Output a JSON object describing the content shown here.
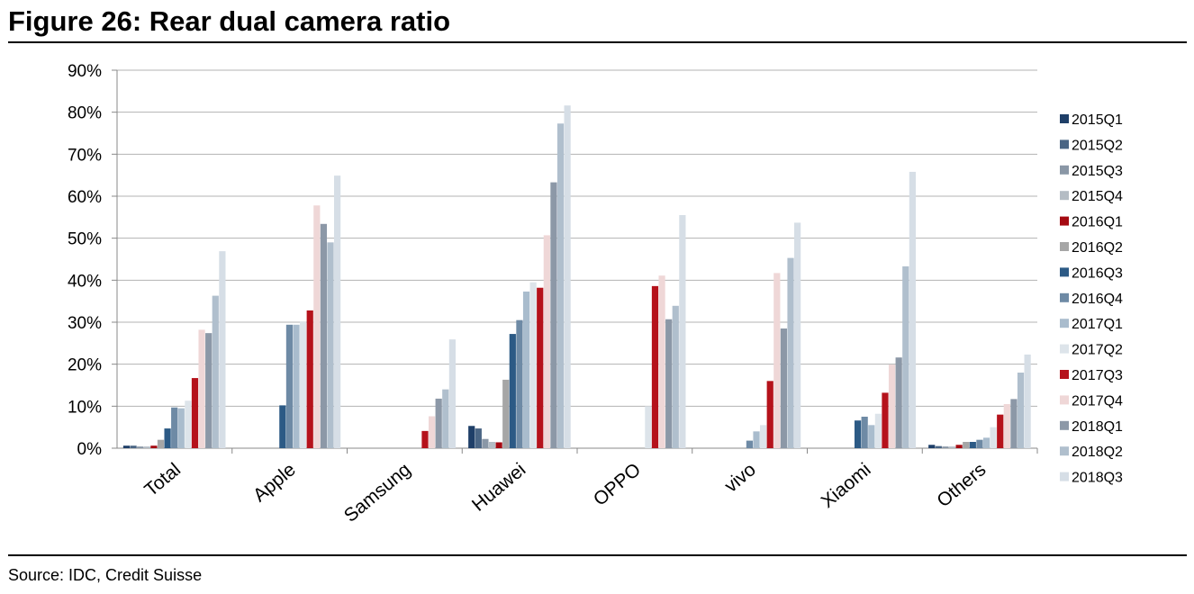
{
  "figure": {
    "title": "Figure 26: Rear dual camera ratio",
    "source": "Source: IDC, Credit Suisse"
  },
  "chart_data": {
    "type": "bar",
    "title": "",
    "xlabel": "",
    "ylabel": "",
    "ylim": [
      0,
      90
    ],
    "y_format": "percent",
    "y_ticks": [
      0,
      10,
      20,
      30,
      40,
      50,
      60,
      70,
      80,
      90
    ],
    "y_tick_labels": [
      "0%",
      "10%",
      "20%",
      "30%",
      "40%",
      "50%",
      "60%",
      "70%",
      "80%",
      "90%"
    ],
    "grid": true,
    "legend_position": "right",
    "categories": [
      "Total",
      "Apple",
      "Samsung",
      "Huawei",
      "OPPO",
      "vivo",
      "Xiaomi",
      "Others"
    ],
    "series": [
      {
        "name": "2015Q1",
        "color": "#1f3f68",
        "values": [
          0.6,
          0,
          0,
          5.3,
          0,
          0,
          0,
          0.8
        ]
      },
      {
        "name": "2015Q2",
        "color": "#4a6584",
        "values": [
          0.6,
          0,
          0,
          4.7,
          0,
          0,
          0,
          0.5
        ]
      },
      {
        "name": "2015Q3",
        "color": "#8a97a6",
        "values": [
          0.4,
          0,
          0,
          2.2,
          0,
          0,
          0,
          0.4
        ]
      },
      {
        "name": "2015Q4",
        "color": "#b4bcc4",
        "values": [
          0.4,
          0,
          0,
          1.5,
          0,
          0,
          0,
          0.4
        ]
      },
      {
        "name": "2016Q1",
        "color": "#a50a12",
        "values": [
          0.6,
          0,
          0,
          1.4,
          0,
          0,
          0,
          0.8
        ]
      },
      {
        "name": "2016Q2",
        "color": "#a6a6a6",
        "values": [
          2.0,
          0,
          0,
          16.3,
          0,
          0,
          0,
          1.5
        ]
      },
      {
        "name": "2016Q3",
        "color": "#2c5a85",
        "values": [
          4.7,
          10.2,
          0,
          27.2,
          0,
          0,
          6.6,
          1.5
        ]
      },
      {
        "name": "2016Q4",
        "color": "#6e8aa5",
        "values": [
          9.7,
          29.4,
          0,
          30.5,
          0,
          1.8,
          7.5,
          2.0
        ]
      },
      {
        "name": "2017Q1",
        "color": "#a9bccd",
        "values": [
          9.5,
          29.4,
          0,
          37.3,
          0,
          4.0,
          5.5,
          2.5
        ]
      },
      {
        "name": "2017Q2",
        "color": "#dde4ea",
        "values": [
          11.3,
          30.2,
          0,
          39.5,
          10.0,
          5.5,
          8.2,
          5.0
        ]
      },
      {
        "name": "2017Q3",
        "color": "#b5121b",
        "values": [
          16.7,
          32.8,
          4.1,
          38.2,
          38.6,
          16.0,
          13.2,
          8.0
        ]
      },
      {
        "name": "2017Q4",
        "color": "#efd7d7",
        "values": [
          28.2,
          57.8,
          7.6,
          50.7,
          41.1,
          41.7,
          19.9,
          10.5
        ]
      },
      {
        "name": "2018Q1",
        "color": "#8c98a7",
        "values": [
          27.4,
          53.4,
          11.8,
          63.3,
          30.7,
          28.5,
          21.6,
          11.7
        ]
      },
      {
        "name": "2018Q2",
        "color": "#b0bfcd",
        "values": [
          36.3,
          49.0,
          14.0,
          77.3,
          33.9,
          45.3,
          43.3,
          18.0
        ]
      },
      {
        "name": "2018Q3",
        "color": "#d6dee6",
        "values": [
          46.9,
          64.9,
          25.9,
          81.6,
          55.5,
          53.7,
          65.8,
          22.3
        ]
      }
    ]
  }
}
